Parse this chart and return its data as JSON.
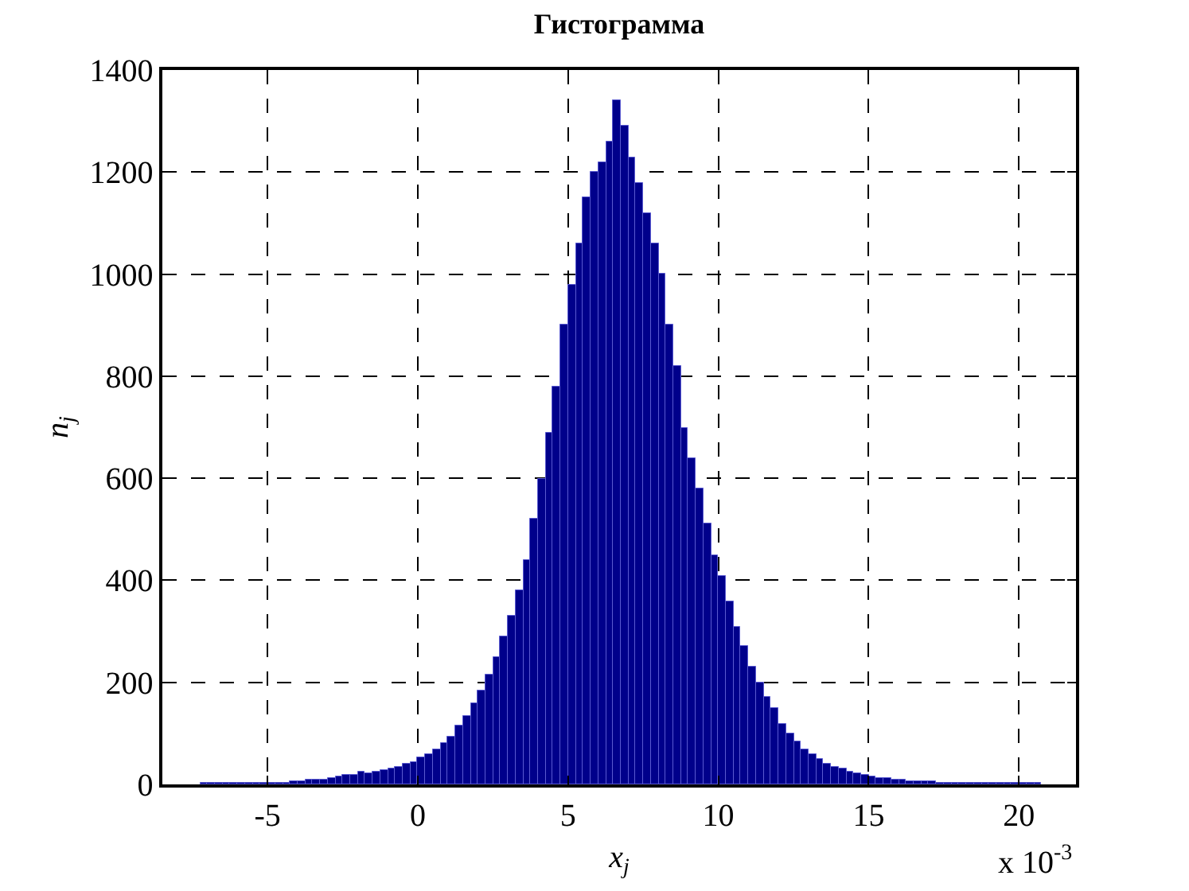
{
  "chart_data": {
    "type": "histogram",
    "title": "Гистограмма",
    "xlabel": "x$_{j}$",
    "ylabel": "n$_{j}$",
    "annotations": [
      "x 10$^{-3}$"
    ],
    "color": "#00008b",
    "bins": [
      -7.25,
      -7.0,
      -6.75,
      -6.5,
      -6.25,
      -6.0,
      -5.75,
      -5.5,
      -5.25,
      -5.0,
      -4.75,
      -4.5,
      -4.25,
      -4.0,
      -3.75,
      -3.5,
      -3.25,
      -3.0,
      -2.75,
      -2.5,
      -2.25,
      -2.0,
      -1.75,
      -1.5,
      -1.25,
      -1.0,
      -0.75,
      -0.5,
      -0.25,
      0.0,
      0.25,
      0.5,
      0.75,
      1.0,
      1.25,
      1.5,
      1.75,
      2.0,
      2.25,
      2.5,
      2.75,
      3.0,
      3.25,
      3.5,
      3.75,
      4.0,
      4.25,
      4.5,
      4.75,
      5.0,
      5.25,
      5.5,
      5.75,
      6.0,
      6.25,
      6.5,
      6.75,
      7.0,
      7.25,
      7.5,
      7.75,
      8.0,
      8.25,
      8.5,
      8.75,
      9.0,
      9.25,
      9.5,
      9.75,
      10.0,
      10.25,
      10.5,
      10.75,
      11.0,
      11.25,
      11.5,
      11.75,
      12.0,
      12.25,
      12.5,
      12.75,
      13.0,
      13.25,
      13.5,
      13.75,
      14.0,
      14.25,
      14.5,
      14.75,
      15.0,
      15.25,
      15.5,
      15.75,
      16.0,
      16.25,
      16.5,
      16.75,
      17.0,
      17.25,
      17.5,
      17.75,
      18.0,
      18.25,
      18.5,
      18.75,
      19.0,
      19.25,
      19.5,
      19.75,
      20.0,
      20.25,
      20.5,
      20.75
    ],
    "values": [
      2,
      3,
      3,
      2,
      3,
      3,
      2,
      3,
      4,
      3,
      4,
      4,
      5,
      6,
      8,
      10,
      9,
      12,
      15,
      18,
      20,
      24,
      22,
      25,
      28,
      30,
      35,
      40,
      45,
      52,
      60,
      68,
      80,
      95,
      115,
      135,
      160,
      185,
      215,
      250,
      290,
      330,
      380,
      440,
      520,
      600,
      690,
      780,
      900,
      980,
      1060,
      1150,
      1200,
      1220,
      1260,
      1340,
      1290,
      1230,
      1180,
      1120,
      1060,
      1000,
      900,
      820,
      700,
      640,
      580,
      510,
      450,
      410,
      360,
      310,
      270,
      230,
      200,
      170,
      150,
      120,
      100,
      85,
      70,
      60,
      50,
      42,
      35,
      30,
      25,
      22,
      20,
      16,
      14,
      12,
      10,
      8,
      7,
      6,
      5,
      5,
      4,
      4,
      3,
      3,
      3,
      2,
      3,
      3,
      2,
      3,
      3,
      2,
      3,
      2
    ],
    "xlim": [
      -8.5,
      21.9
    ],
    "xticks": [
      -5,
      0,
      5,
      10,
      15,
      20
    ],
    "ylim": [
      0,
      1400
    ],
    "yticks": [
      0,
      200,
      400,
      600,
      800,
      1000,
      1200,
      1400
    ],
    "grid": true
  }
}
